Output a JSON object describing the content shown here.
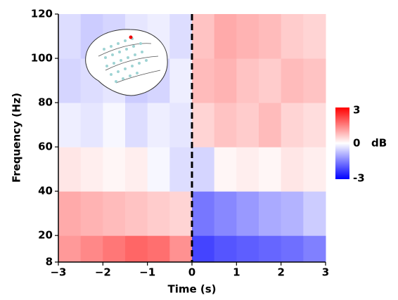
{
  "chart_data": {
    "type": "heatmap",
    "x_label": "Time (s)",
    "y_label": "Frequency (Hz)",
    "x_edges": [
      -3,
      -2.5,
      -2,
      -1.5,
      -1,
      -0.5,
      0,
      0.5,
      1,
      1.5,
      2,
      2.5,
      3
    ],
    "y_edges": [
      8,
      20,
      40,
      60,
      80,
      100,
      120
    ],
    "z": [
      [
        1.2,
        1.4,
        1.6,
        1.8,
        1.7,
        1.3,
        -2.2,
        -2.0,
        -1.9,
        -1.8,
        -1.7,
        -1.5
      ],
      [
        1.0,
        0.9,
        0.8,
        0.7,
        0.6,
        0.5,
        -1.6,
        -1.4,
        -1.2,
        -1.0,
        -0.9,
        -0.6
      ],
      [
        0.3,
        0.2,
        0.1,
        0.2,
        -0.1,
        -0.4,
        -0.5,
        0.1,
        0.2,
        0.1,
        0.3,
        0.2
      ],
      [
        -0.2,
        -0.3,
        -0.1,
        -0.4,
        -0.2,
        -0.3,
        0.5,
        0.7,
        0.6,
        0.8,
        0.5,
        0.4
      ],
      [
        -0.5,
        -0.4,
        -0.3,
        -0.6,
        -0.5,
        -0.2,
        0.8,
        0.9,
        0.7,
        0.6,
        0.8,
        0.7
      ],
      [
        -0.4,
        -0.6,
        -0.5,
        -0.3,
        -0.2,
        -0.4,
        0.7,
        1.0,
        0.9,
        0.8,
        0.6,
        0.5
      ]
    ],
    "xlim": [
      -3,
      3
    ],
    "xticks": [
      {
        "value": -3,
        "label": "−3"
      },
      {
        "value": -2,
        "label": "−2"
      },
      {
        "value": -1,
        "label": "−1"
      },
      0,
      1,
      2,
      3
    ],
    "ylim": [
      8,
      120
    ],
    "yticks": [
      8,
      20,
      40,
      60,
      80,
      100,
      120
    ],
    "event_line": 0,
    "colormap": "bwr",
    "clim": [
      -3,
      3
    ],
    "colorbar_ticks": [
      3,
      0,
      -3
    ],
    "colorbar_label": "dB"
  }
}
